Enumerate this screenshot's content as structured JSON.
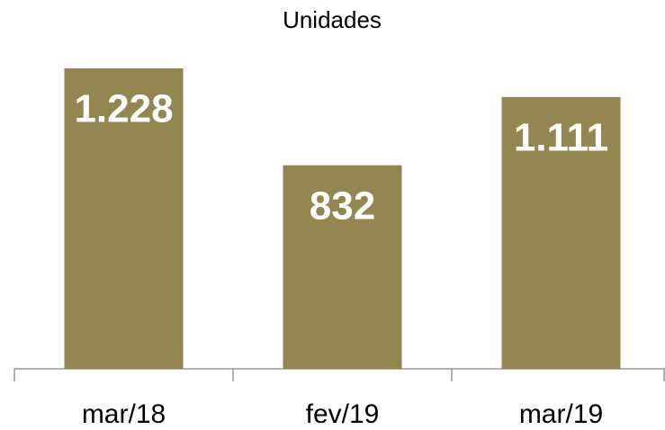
{
  "chart_data": {
    "type": "bar",
    "title": "Unidades",
    "categories": [
      "mar/18",
      "fev/19",
      "mar/19"
    ],
    "values": [
      1228,
      832,
      1111
    ],
    "value_labels": [
      "1.228",
      "832",
      "1.111"
    ],
    "color": "#948651"
  }
}
